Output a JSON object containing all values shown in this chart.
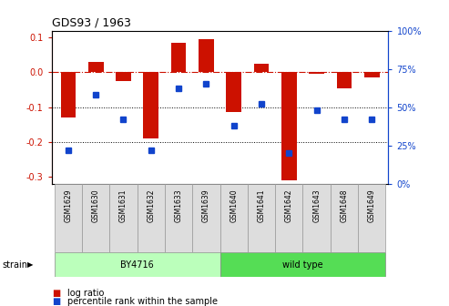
{
  "title": "GDS93 / 1963",
  "samples": [
    "GSM1629",
    "GSM1630",
    "GSM1631",
    "GSM1632",
    "GSM1633",
    "GSM1639",
    "GSM1640",
    "GSM1641",
    "GSM1642",
    "GSM1643",
    "GSM1648",
    "GSM1649"
  ],
  "log_ratio": [
    -0.13,
    0.03,
    -0.025,
    -0.19,
    0.085,
    0.095,
    -0.115,
    0.025,
    -0.31,
    -0.005,
    -0.045,
    -0.015
  ],
  "percentile": [
    22,
    58,
    42,
    22,
    62,
    65,
    38,
    52,
    20,
    48,
    42,
    42
  ],
  "bar_color": "#cc1100",
  "dot_color": "#1144cc",
  "bg_color": "#ffffff",
  "grid_color": "#000000",
  "dashed_line_color": "#cc1100",
  "ylim_left": [
    -0.32,
    0.12
  ],
  "ylim_right": [
    0,
    100
  ],
  "yticks_left": [
    0.1,
    0.0,
    -0.1,
    -0.2,
    -0.3
  ],
  "yticks_right": [
    100,
    75,
    50,
    25,
    0
  ],
  "strain_groups": [
    {
      "label": "BY4716",
      "start": 0,
      "end": 5,
      "color": "#bbffbb"
    },
    {
      "label": "wild type",
      "start": 6,
      "end": 11,
      "color": "#55dd55"
    }
  ],
  "strain_label": "strain",
  "legend_items": [
    {
      "label": "log ratio",
      "color": "#cc1100"
    },
    {
      "label": "percentile rank within the sample",
      "color": "#1144cc"
    }
  ],
  "by4716_count": 6,
  "wildtype_count": 6
}
